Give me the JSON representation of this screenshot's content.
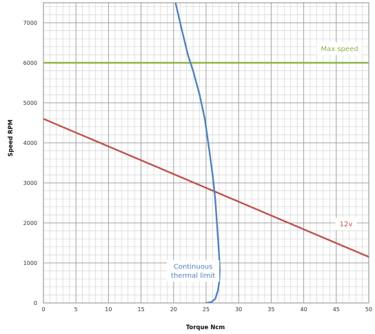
{
  "chart_data": {
    "type": "line",
    "title": "",
    "xlabel": "Torque Ncm",
    "ylabel": "Speed RPM",
    "xlim": [
      0,
      50
    ],
    "ylim": [
      0,
      7500
    ],
    "x_ticks": [
      0,
      5,
      10,
      15,
      20,
      25,
      30,
      35,
      40,
      45,
      50
    ],
    "y_ticks": [
      0,
      1000,
      2000,
      3000,
      4000,
      5000,
      6000,
      7000
    ],
    "grid": true,
    "minor_grid": {
      "x_step": 1,
      "y_step": 200
    },
    "colors": {
      "major_grid": "#a0a0a0",
      "minor_grid": "#d3d3d3"
    },
    "series": [
      {
        "name": "Max speed",
        "color": "#8cb447",
        "points": [
          [
            0,
            6000
          ],
          [
            50,
            6000
          ]
        ]
      },
      {
        "name": "12v",
        "color": "#c0504d",
        "points": [
          [
            0,
            4600
          ],
          [
            50,
            1150
          ]
        ]
      },
      {
        "name": "Continuous thermal limit",
        "color": "#4f81bd",
        "points": [
          [
            20.3,
            7500
          ],
          [
            21.3,
            6800
          ],
          [
            22.2,
            6200
          ],
          [
            23.0,
            5800
          ],
          [
            24.0,
            5200
          ],
          [
            24.8,
            4600
          ],
          [
            25.5,
            3800
          ],
          [
            26.0,
            3200
          ],
          [
            26.4,
            2600
          ],
          [
            26.7,
            1900
          ],
          [
            27.0,
            1200
          ],
          [
            27.1,
            800
          ],
          [
            27.0,
            500
          ],
          [
            26.8,
            300
          ],
          [
            26.4,
            100
          ],
          [
            25.8,
            20
          ],
          [
            25.0,
            0
          ]
        ]
      }
    ],
    "annotations": [
      {
        "series": "Max speed",
        "text": "Max speed",
        "x": 45.5,
        "y": 6350,
        "color": "#8cb447"
      },
      {
        "series": "12v",
        "text": "12v",
        "x": 46.5,
        "y": 1970,
        "color": "#c0504d"
      },
      {
        "series": "Continuous thermal limit",
        "lines": [
          "Continuous",
          "thermal limit"
        ],
        "x": 23.0,
        "y": 800,
        "color": "#4f81bd"
      }
    ]
  }
}
